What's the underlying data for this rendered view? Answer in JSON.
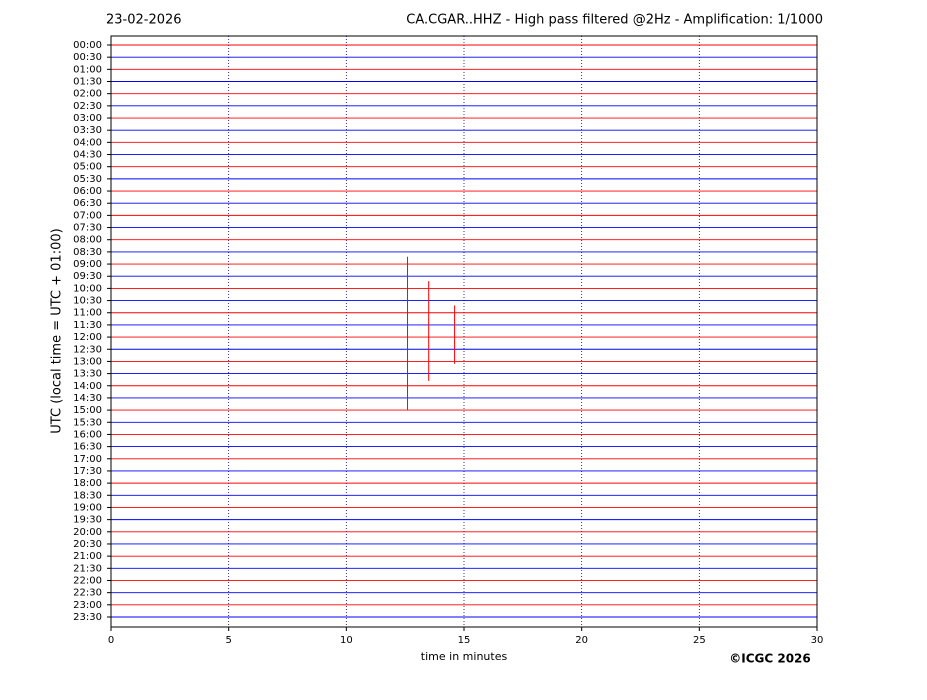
{
  "chart_data": {
    "type": "helicorder",
    "date": "23-02-2026",
    "title": "CA.CGAR..HHZ - High pass filtered @2Hz - Amplification: 1/1000",
    "x_label": "time in minutes",
    "y_label": "UTC (local time = UTC + 01:00)",
    "copyright": "©ICGC 2026",
    "categories": [
      "00:00",
      "00:30",
      "01:00",
      "01:30",
      "02:00",
      "02:30",
      "03:00",
      "03:30",
      "04:00",
      "04:30",
      "05:00",
      "05:30",
      "06:00",
      "06:30",
      "07:00",
      "07:30",
      "08:00",
      "08:30",
      "09:00",
      "09:30",
      "10:00",
      "10:30",
      "11:00",
      "11:30",
      "12:00",
      "12:30",
      "13:00",
      "13:30",
      "14:00",
      "14:30",
      "15:00",
      "15:30",
      "16:00",
      "16:30",
      "17:00",
      "17:30",
      "18:00",
      "18:30",
      "19:00",
      "19:30",
      "20:00",
      "20:30",
      "21:00",
      "21:30",
      "22:00",
      "22:30",
      "23:00",
      "23:30"
    ],
    "trace_colors": [
      "#ff0000",
      "#0000ff"
    ],
    "xlim": [
      0,
      30
    ],
    "xticks": [
      0,
      5,
      10,
      15,
      20,
      25,
      30
    ],
    "grid": true,
    "events": [
      {
        "x": 12.6,
        "span": [
          8.7,
          15.0
        ]
      },
      {
        "x": 13.5,
        "span": [
          9.7,
          13.8
        ]
      },
      {
        "x": 14.6,
        "span": [
          10.7,
          13.1
        ]
      }
    ]
  }
}
